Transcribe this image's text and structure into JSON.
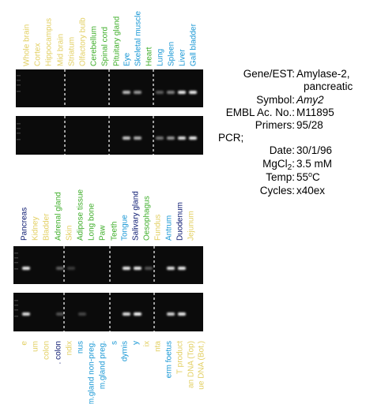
{
  "colors": {
    "yellow": "#e2cf62",
    "green": "#3fae2a",
    "cyan": "#1a98d5",
    "navy": "#0a1870"
  },
  "top_panel": {
    "lanes": [
      {
        "label": "Whole brain",
        "color": "yellow"
      },
      {
        "label": "Cortex",
        "color": "yellow"
      },
      {
        "label": "Hippocampus",
        "color": "yellow"
      },
      {
        "label": "Mid brain",
        "color": "yellow"
      },
      {
        "label": "Striatum",
        "color": "yellow"
      },
      {
        "label": "Olfactory bulb",
        "color": "yellow"
      },
      {
        "label": "Cerebellum",
        "color": "green"
      },
      {
        "label": "Spinal cord",
        "color": "green"
      },
      {
        "label": "Pituitary gland",
        "color": "green"
      },
      {
        "label": "Eye",
        "color": "cyan"
      },
      {
        "label": "Skeletal muscle",
        "color": "cyan"
      },
      {
        "label": "Heart",
        "color": "green"
      },
      {
        "label": "Lung",
        "color": "cyan"
      },
      {
        "label": "Spleen",
        "color": "cyan"
      },
      {
        "label": "Liver",
        "color": "cyan"
      },
      {
        "label": "Gall bladder",
        "color": "cyan"
      }
    ]
  },
  "middle_panel": {
    "lanes": [
      {
        "label": "Pancreas",
        "color": "navy"
      },
      {
        "label": "Kidney",
        "color": "yellow"
      },
      {
        "label": "Bladder",
        "color": "yellow"
      },
      {
        "label": "Adrenal gland",
        "color": "green"
      },
      {
        "label": "Skin",
        "color": "yellow"
      },
      {
        "label": "Adipose tissue",
        "color": "green"
      },
      {
        "label": "Long bone",
        "color": "green"
      },
      {
        "label": "Paw",
        "color": "green"
      },
      {
        "label": "Teeth",
        "color": "green"
      },
      {
        "label": "Tongue",
        "color": "cyan"
      },
      {
        "label": "Salivary gland",
        "color": "navy"
      },
      {
        "label": "Oesophagus",
        "color": "green"
      },
      {
        "label": "Fundus",
        "color": "yellow"
      },
      {
        "label": "Antrum",
        "color": "cyan"
      },
      {
        "label": "Duodenum",
        "color": "navy"
      },
      {
        "label": "Jejunum",
        "color": "yellow"
      }
    ]
  },
  "bottom_panel": {
    "lanes": [
      {
        "label": "e",
        "color": "yellow"
      },
      {
        "label": "um",
        "color": "yellow"
      },
      {
        "label": "colon",
        "color": "yellow"
      },
      {
        "label": ". colon",
        "color": "navy"
      },
      {
        "label": "ndix",
        "color": "yellow"
      },
      {
        "label": "nus",
        "color": "cyan"
      },
      {
        "label": "m.gland non-preg.",
        "color": "cyan"
      },
      {
        "label": "m.gland preg.",
        "color": "cyan"
      },
      {
        "label": "s",
        "color": "cyan"
      },
      {
        "label": "dymis",
        "color": "cyan"
      },
      {
        "label": "y",
        "color": "cyan"
      },
      {
        "label": "ix",
        "color": "yellow"
      },
      {
        "label": "nta",
        "color": "yellow"
      },
      {
        "label": "erm foetus",
        "color": "cyan"
      },
      {
        "label": "T product",
        "color": "yellow"
      },
      {
        "label": "an DNA (Top)",
        "color": "yellow"
      },
      {
        "label": "ue DNA (Bot.)",
        "color": "yellow"
      }
    ]
  },
  "info": {
    "gene_label": "Gene/EST:",
    "gene_value": "Amylase-2,",
    "gene_value_cont": "pancreatic",
    "symbol_label": "Symbol:",
    "symbol_value": "Amy2",
    "embl_label": "EMBL Ac. No.:",
    "embl_value": "M11895",
    "primers_label": "Primers:",
    "primers_value": "95/28",
    "pcr_label": "PCR;",
    "date_label": "Date:",
    "date_value": "30/1/96",
    "mgcl_label": "MgCl",
    "mgcl_sub": "2",
    "mgcl_colon": ":",
    "mgcl_value": "3.5 mM",
    "temp_label": "Temp:",
    "temp_value": "55",
    "temp_sup": "o",
    "temp_unit": "C",
    "cycles_label": "Cycles:",
    "cycles_value": "x40ex"
  }
}
